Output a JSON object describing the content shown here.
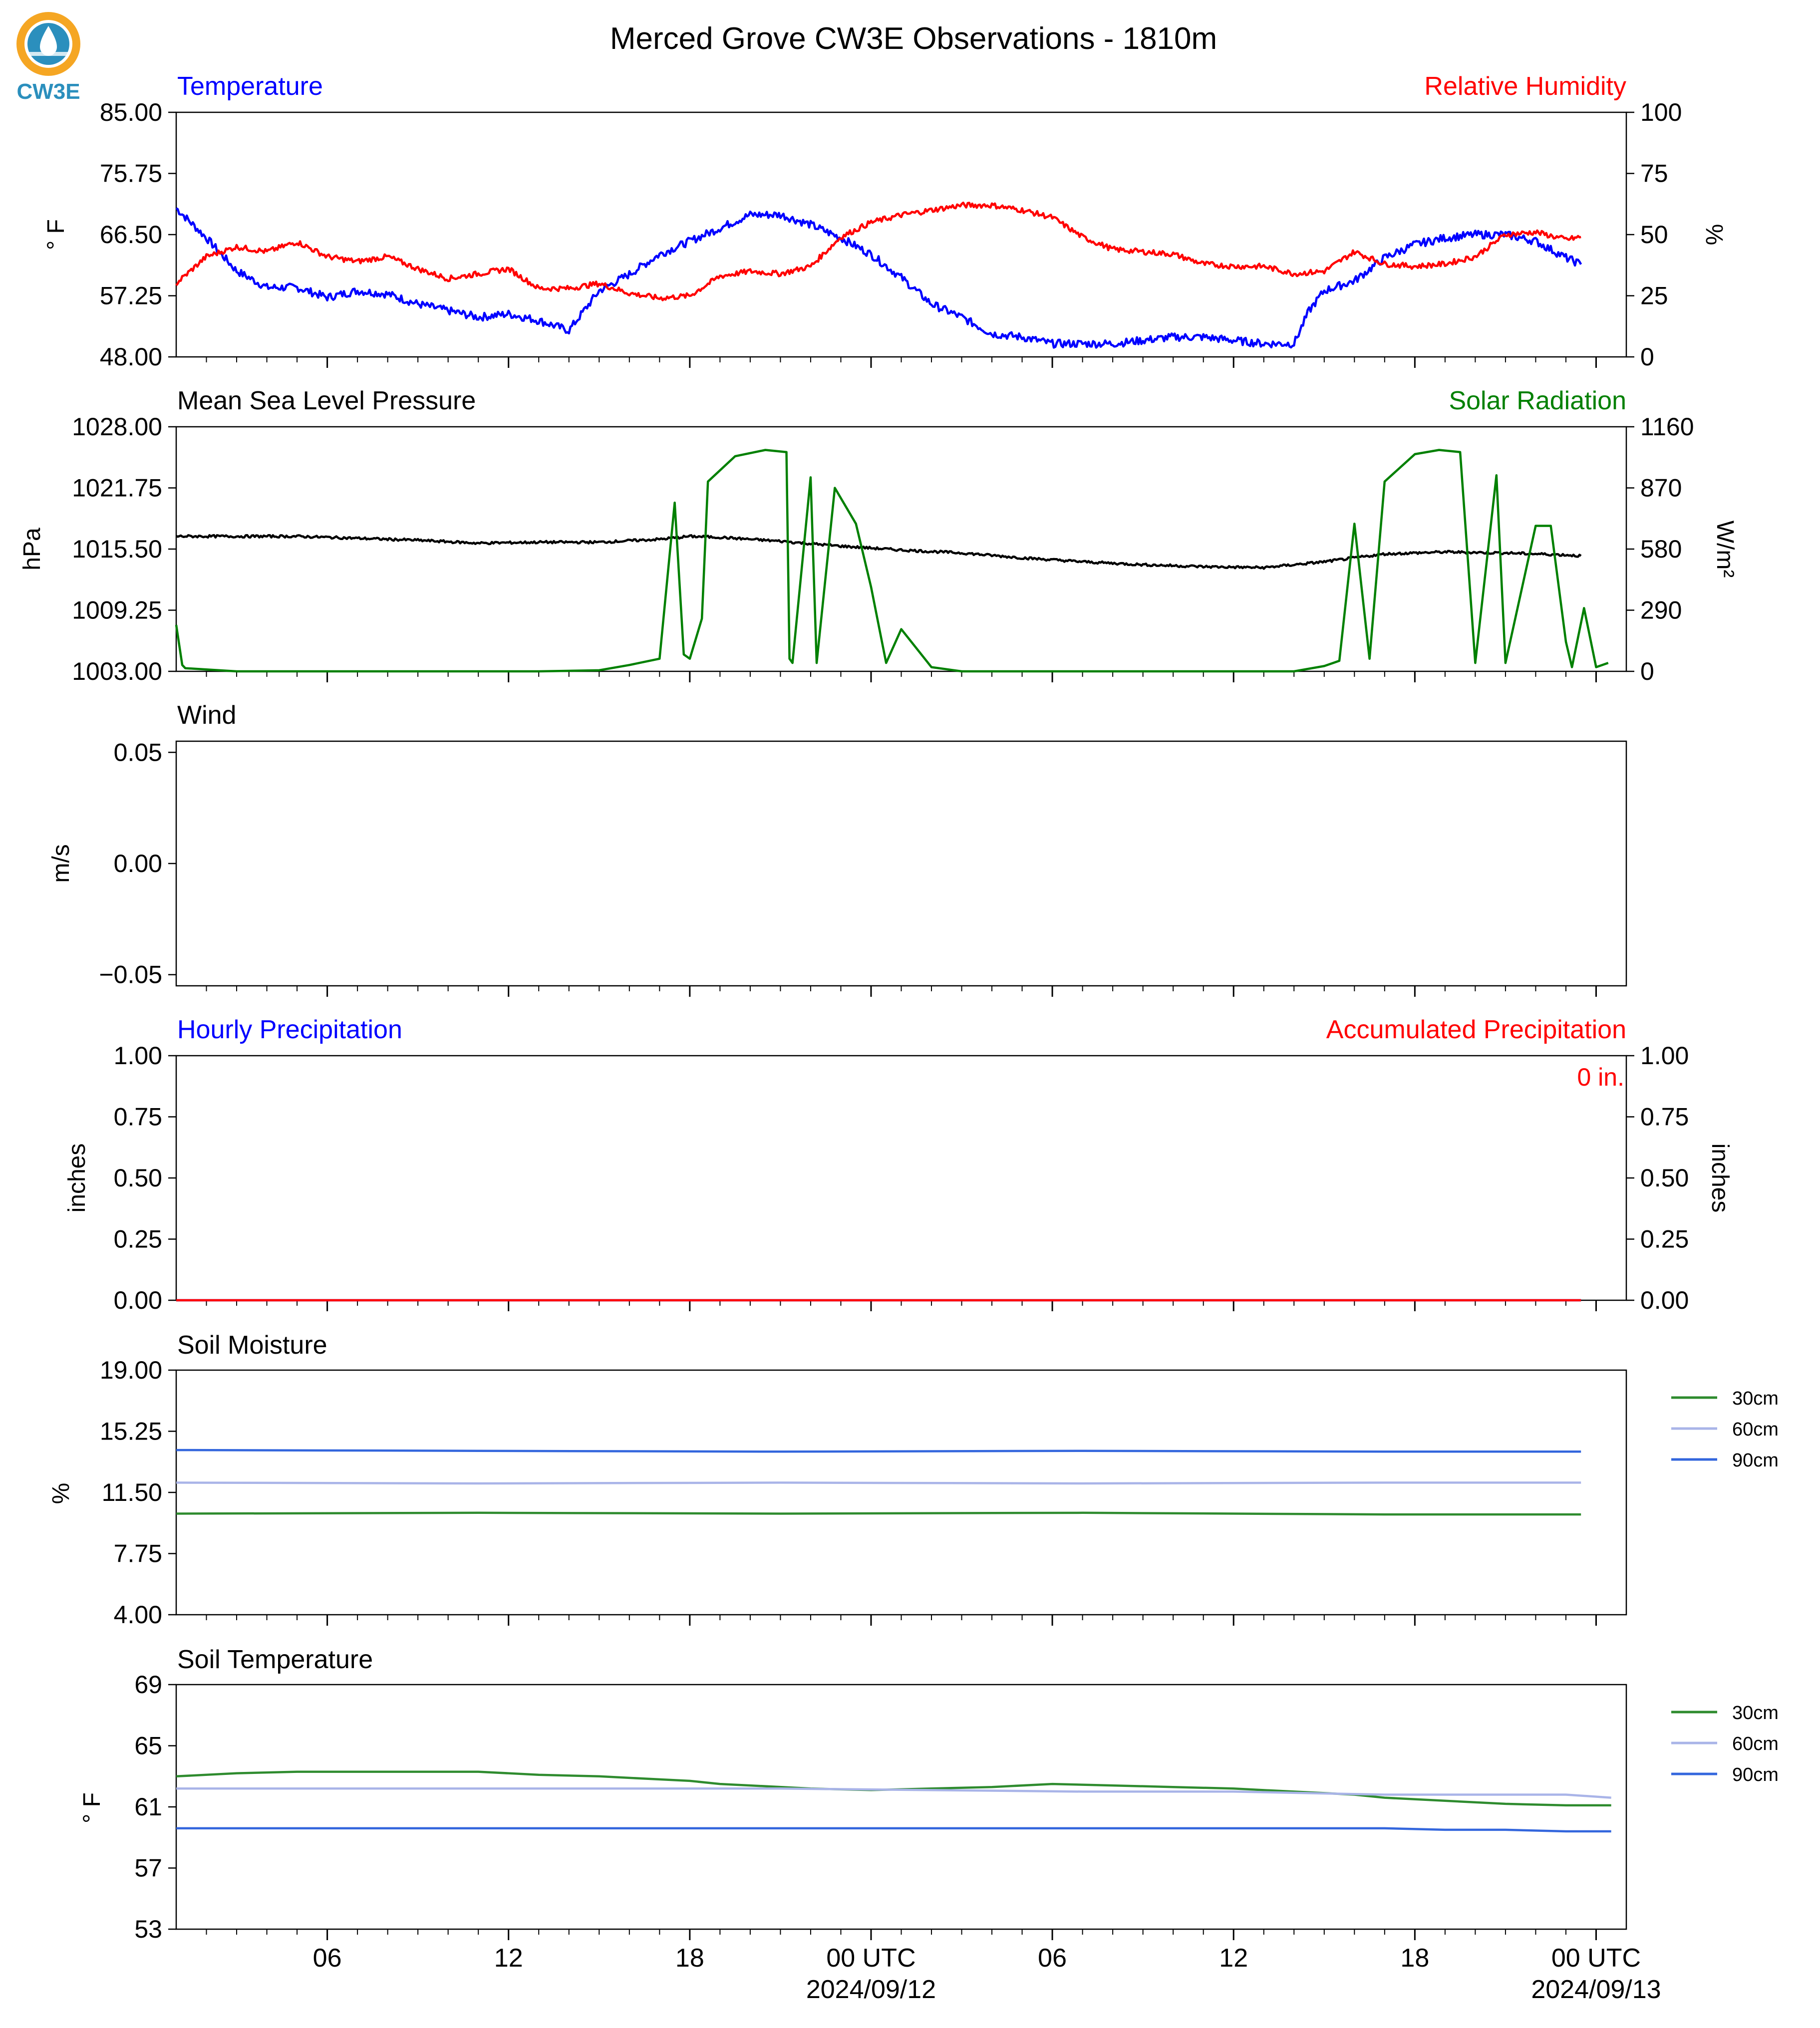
{
  "title": "Merced Grove CW3E Observations - 1810m",
  "logo": {
    "text": "CW3E",
    "ring_color": "#f5a623",
    "drop_color": "#2b8fbd"
  },
  "time_axis": {
    "start_hour": 0,
    "end_hour": 48,
    "hour_ticks": [
      {
        "hour": 5,
        "label": "06"
      },
      {
        "hour": 11,
        "label": "12"
      },
      {
        "hour": 17,
        "label": "18"
      },
      {
        "hour": 23,
        "label": "00 UTC",
        "date": "2024/09/12"
      },
      {
        "hour": 29,
        "label": "06"
      },
      {
        "hour": 35,
        "label": "12"
      },
      {
        "hour": 41,
        "label": "18"
      },
      {
        "hour": 47,
        "label": "00 UTC",
        "date": "2024/09/13"
      }
    ]
  },
  "panels": {
    "temperature": {
      "left_label": "Temperature",
      "left_color": "#0000ff",
      "left_unit": "° F",
      "right_label": "Relative Humidity",
      "right_color": "#ff0000",
      "right_unit": "%",
      "left_ticks": [
        "85.00",
        "75.75",
        "66.50",
        "57.25",
        "48.00"
      ],
      "right_ticks": [
        "100",
        "75",
        "50",
        "25",
        "0"
      ]
    },
    "pressure": {
      "left_label": "Mean Sea Level Pressure",
      "left_color": "#000000",
      "left_unit": "hPa",
      "right_label": "Solar Radiation",
      "right_color": "#008000",
      "right_unit": "W/m²",
      "left_ticks": [
        "1028.00",
        "1021.75",
        "1015.50",
        "1009.25",
        "1003.00"
      ],
      "right_ticks": [
        "1160",
        "870",
        "580",
        "290",
        "0"
      ]
    },
    "wind": {
      "left_label": "Wind",
      "left_unit": "m/s",
      "left_ticks": [
        "0.05",
        "0.00",
        "−0.05"
      ]
    },
    "precip": {
      "left_label": "Hourly Precipitation",
      "left_color": "#0000ff",
      "left_unit": "inches",
      "right_label": "Accumulated Precipitation",
      "right_color": "#ff0000",
      "right_unit": "inches",
      "left_ticks": [
        "1.00",
        "0.75",
        "0.50",
        "0.25",
        "0.00"
      ],
      "right_ticks": [
        "1.00",
        "0.75",
        "0.50",
        "0.25",
        "0.00"
      ],
      "accum_text": "0 in."
    },
    "soil_moisture": {
      "left_label": "Soil Moisture",
      "left_unit": "%",
      "left_ticks": [
        "19.00",
        "15.25",
        "11.50",
        "7.75",
        "4.00"
      ],
      "legend": [
        "30cm",
        "60cm",
        "90cm"
      ]
    },
    "soil_temp": {
      "left_label": "Soil Temperature",
      "left_unit": "° F",
      "left_ticks": [
        "69",
        "65",
        "61",
        "57",
        "53"
      ],
      "legend": [
        "30cm",
        "60cm",
        "90cm"
      ]
    }
  },
  "chart_data": [
    {
      "type": "line",
      "title": "Temperature / Relative Humidity",
      "x_unit": "hours since 2024/09/11 01 UTC",
      "xlim": [
        0,
        48
      ],
      "ylim_left": [
        48,
        85
      ],
      "ylim_right": [
        0,
        100
      ],
      "series": [
        {
          "name": "Temperature",
          "axis": "left",
          "color": "#0000ff",
          "x": [
            0,
            1,
            2,
            3,
            4,
            5,
            6,
            7,
            8,
            9,
            10,
            11,
            12,
            13,
            13.5,
            14,
            15,
            16,
            17,
            18,
            19,
            20,
            21,
            22,
            23,
            24,
            25,
            26,
            27,
            28,
            29,
            30,
            31,
            32,
            33,
            34,
            35,
            36,
            37,
            37.5,
            38,
            39,
            40,
            41,
            42,
            43,
            44,
            45,
            46,
            46.5
          ],
          "y": [
            70.5,
            66,
            61,
            58.5,
            58.5,
            57,
            58,
            57.5,
            56,
            55,
            54,
            54.5,
            53.5,
            52,
            55,
            58,
            60.5,
            63.5,
            65.5,
            67.5,
            69.5,
            69.5,
            68,
            66,
            63.5,
            60,
            56,
            54,
            51.5,
            51,
            50,
            50,
            50,
            50.5,
            51,
            51,
            50.5,
            50,
            50,
            55,
            58,
            59.5,
            63,
            65,
            66,
            66.5,
            66.5,
            65.5,
            63,
            62
          ]
        },
        {
          "name": "Relative Humidity",
          "axis": "right",
          "color": "#ff0000",
          "x": [
            0,
            1,
            2,
            3,
            4,
            5,
            6,
            7,
            8,
            9,
            10,
            11,
            12,
            13,
            14,
            15,
            16,
            17,
            18,
            19,
            20,
            21,
            22,
            23,
            24,
            25,
            26,
            27,
            28,
            29,
            30,
            31,
            32,
            33,
            34,
            35,
            36,
            37,
            38,
            39,
            40,
            41,
            42,
            43,
            44,
            45,
            46,
            46.5
          ],
          "y": [
            30,
            41,
            45,
            43,
            47,
            41,
            39,
            41,
            36,
            32,
            34,
            36,
            28,
            28,
            30,
            26,
            24,
            25,
            33,
            35,
            34,
            37,
            49,
            55,
            58,
            60,
            62,
            62,
            60,
            57,
            49,
            44,
            43,
            42,
            38,
            37,
            37,
            34,
            35,
            43,
            38,
            37,
            38,
            41,
            50,
            51,
            48,
            49
          ]
        }
      ]
    },
    {
      "type": "line",
      "title": "Mean Sea Level Pressure / Solar Radiation",
      "xlim": [
        0,
        48
      ],
      "ylim_left": [
        1003,
        1028
      ],
      "ylim_right": [
        0,
        1160
      ],
      "series": [
        {
          "name": "Mean Sea Level Pressure",
          "axis": "left",
          "color": "#000000",
          "x": [
            0,
            2,
            4,
            6,
            8,
            10,
            12,
            14,
            16,
            17,
            18,
            20,
            22,
            24,
            26,
            28,
            30,
            32,
            34,
            36,
            38,
            40,
            42,
            44,
            46,
            46.5
          ],
          "y": [
            1016.8,
            1016.8,
            1016.8,
            1016.6,
            1016.4,
            1016.1,
            1016.2,
            1016.2,
            1016.5,
            1016.8,
            1016.7,
            1016.3,
            1015.8,
            1015.4,
            1015.1,
            1014.6,
            1014.2,
            1013.9,
            1013.7,
            1013.6,
            1014.2,
            1015.0,
            1015.2,
            1015.1,
            1014.9,
            1014.8
          ]
        },
        {
          "name": "Solar Radiation",
          "axis": "right",
          "color": "#008000",
          "x": [
            0,
            0.2,
            0.3,
            2,
            12,
            14,
            15,
            16,
            16.5,
            16.8,
            17,
            17.4,
            17.6,
            18.5,
            19.5,
            20.2,
            20.3,
            20.4,
            21,
            21.2,
            21.8,
            22.5,
            23,
            23.5,
            24,
            25,
            26,
            28,
            30,
            32,
            34,
            36,
            37,
            38,
            38.5,
            39,
            39.5,
            40,
            41,
            41.8,
            42.5,
            43,
            43.7,
            44,
            45,
            45.5,
            46,
            46.2,
            46.6,
            47,
            47.4
          ],
          "y": [
            220,
            30,
            15,
            0,
            0,
            5,
            30,
            60,
            800,
            80,
            60,
            250,
            900,
            1020,
            1050,
            1040,
            60,
            40,
            920,
            40,
            870,
            700,
            400,
            40,
            200,
            20,
            0,
            0,
            0,
            0,
            0,
            0,
            0,
            25,
            50,
            700,
            60,
            900,
            1030,
            1050,
            1040,
            40,
            930,
            40,
            690,
            690,
            140,
            20,
            300,
            20,
            40
          ]
        }
      ]
    },
    {
      "type": "line",
      "title": "Wind",
      "xlim": [
        0,
        48
      ],
      "ylim": [
        -0.055,
        0.055
      ],
      "series": []
    },
    {
      "type": "line",
      "title": "Hourly Precipitation / Accumulated Precipitation",
      "xlim": [
        0,
        48
      ],
      "ylim_left": [
        0,
        1
      ],
      "ylim_right": [
        0,
        1
      ],
      "series": [
        {
          "name": "Hourly Precipitation",
          "axis": "left",
          "color": "#0000ff",
          "x": [
            0,
            46.5
          ],
          "y": [
            0,
            0
          ]
        },
        {
          "name": "Accumulated Precipitation",
          "axis": "right",
          "color": "#ff0000",
          "x": [
            0,
            46.5
          ],
          "y": [
            0,
            0
          ]
        }
      ]
    },
    {
      "type": "line",
      "title": "Soil Moisture",
      "xlim": [
        0,
        48
      ],
      "ylim": [
        4,
        19
      ],
      "legend_position": "right",
      "series": [
        {
          "name": "30cm",
          "color": "#2e8b2e",
          "x": [
            0,
            10,
            20,
            30,
            40,
            46.5
          ],
          "y": [
            10.2,
            10.25,
            10.2,
            10.25,
            10.15,
            10.15
          ]
        },
        {
          "name": "60cm",
          "color": "#a9b4e8",
          "x": [
            0,
            10,
            20,
            30,
            40,
            46.5
          ],
          "y": [
            12.1,
            12.05,
            12.1,
            12.05,
            12.1,
            12.1
          ]
        },
        {
          "name": "90cm",
          "color": "#3366dd",
          "x": [
            0,
            10,
            20,
            30,
            40,
            46.5
          ],
          "y": [
            14.1,
            14.05,
            14.0,
            14.05,
            14.0,
            14.0
          ]
        }
      ]
    },
    {
      "type": "line",
      "title": "Soil Temperature",
      "xlim": [
        0,
        48
      ],
      "ylim": [
        53,
        69
      ],
      "legend_position": "right",
      "series": [
        {
          "name": "30cm",
          "color": "#2e8b2e",
          "x": [
            0,
            2,
            4,
            8,
            10,
            12,
            14,
            16,
            17,
            18,
            19,
            21,
            23,
            25,
            27,
            29,
            31,
            33,
            35,
            37,
            38,
            39,
            40,
            42,
            44,
            46,
            47.5
          ],
          "y": [
            63.0,
            63.2,
            63.3,
            63.3,
            63.3,
            63.1,
            63.0,
            62.8,
            62.7,
            62.5,
            62.4,
            62.2,
            62.1,
            62.2,
            62.3,
            62.5,
            62.4,
            62.3,
            62.2,
            62.0,
            61.9,
            61.8,
            61.6,
            61.4,
            61.2,
            61.1,
            61.1
          ]
        },
        {
          "name": "60cm",
          "color": "#a9b4e8",
          "x": [
            0,
            10,
            20,
            30,
            35,
            40,
            46,
            47.5
          ],
          "y": [
            62.2,
            62.2,
            62.2,
            62.0,
            62.0,
            61.8,
            61.8,
            61.6
          ]
        },
        {
          "name": "90cm",
          "color": "#3366dd",
          "x": [
            0,
            10,
            20,
            30,
            40,
            42,
            44,
            46,
            47.5
          ],
          "y": [
            59.6,
            59.6,
            59.6,
            59.6,
            59.6,
            59.5,
            59.5,
            59.4,
            59.4
          ]
        }
      ]
    }
  ]
}
